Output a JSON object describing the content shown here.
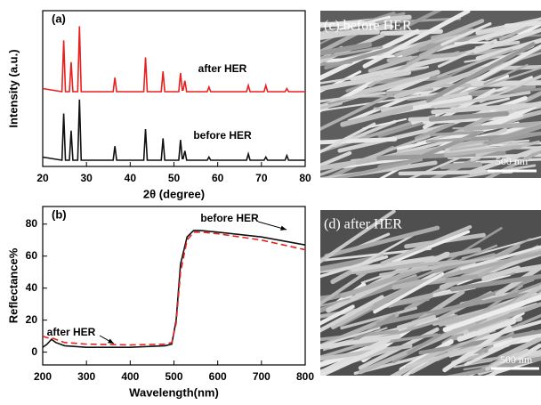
{
  "chart_data": [
    {
      "type": "line",
      "title": "(a)",
      "xlabel": "2θ (degree)",
      "ylabel": "Intensity (a.u.)",
      "xlim": [
        20,
        80
      ],
      "xticks": [
        20,
        30,
        40,
        50,
        60,
        70,
        80
      ],
      "ylim": [
        0,
        100
      ],
      "x": [
        20,
        24.4,
        24.8,
        25.2,
        26.1,
        26.5,
        26.9,
        28.0,
        28.4,
        28.8,
        36.1,
        36.5,
        36.9,
        43.1,
        43.5,
        43.9,
        47.1,
        47.5,
        47.9,
        51.1,
        51.5,
        51.9,
        52.1,
        52.5,
        52.9,
        57.6,
        58.0,
        58.4,
        66.6,
        67.0,
        67.4,
        70.6,
        71.0,
        71.4,
        75.4,
        75.8,
        76.2,
        80
      ],
      "series": [
        {
          "name": "after HER",
          "color": "#e8211f",
          "linestyle": "solid",
          "values": [
            50,
            48,
            81,
            48,
            48,
            67,
            48,
            48,
            90,
            48,
            48,
            57,
            48,
            48,
            70,
            48,
            48,
            61,
            48,
            48,
            60,
            49,
            49,
            55,
            48,
            48,
            51,
            48,
            48,
            52,
            48,
            48,
            52,
            48,
            48,
            50,
            48,
            48
          ]
        },
        {
          "name": "before HER",
          "color": "#111111",
          "linestyle": "solid",
          "values": [
            6,
            4,
            34,
            4,
            4,
            23,
            4,
            4,
            43,
            4,
            4,
            13,
            4,
            4,
            24,
            4,
            4,
            18,
            4,
            4,
            17,
            5,
            5,
            10,
            4,
            4,
            6,
            4,
            4,
            8,
            4,
            4,
            6,
            4,
            4,
            7,
            4,
            4
          ]
        }
      ]
    },
    {
      "type": "line",
      "title": "(b)",
      "xlabel": "Wavelength(nm)",
      "ylabel": "Reflectance%",
      "xlim": [
        200,
        800
      ],
      "xticks": [
        200,
        300,
        400,
        500,
        600,
        700,
        800
      ],
      "ylim": [
        -8,
        91
      ],
      "yticks": [
        0,
        20,
        40,
        60,
        80
      ],
      "x": [
        200,
        210,
        220,
        230,
        250,
        300,
        400,
        480,
        495,
        505,
        515,
        530,
        545,
        560,
        600,
        700,
        800
      ],
      "series": [
        {
          "name": "before HER",
          "color": "#111111",
          "linestyle": "solid",
          "values": [
            3,
            5,
            8,
            6,
            4,
            3,
            3,
            4,
            5,
            20,
            55,
            72,
            76,
            76,
            75,
            72,
            67
          ]
        },
        {
          "name": "after HER",
          "color": "#e8211f",
          "linestyle": "dashed",
          "values": [
            10,
            9,
            9,
            8,
            6,
            5,
            4.5,
            5,
            6,
            18,
            50,
            70,
            75,
            75,
            74,
            70,
            64
          ]
        }
      ]
    }
  ],
  "images": [
    {
      "label": "(c) before HER",
      "scale_bar": "500 nm"
    },
    {
      "label": "(d) after HER",
      "scale_bar": "500 nm"
    }
  ]
}
